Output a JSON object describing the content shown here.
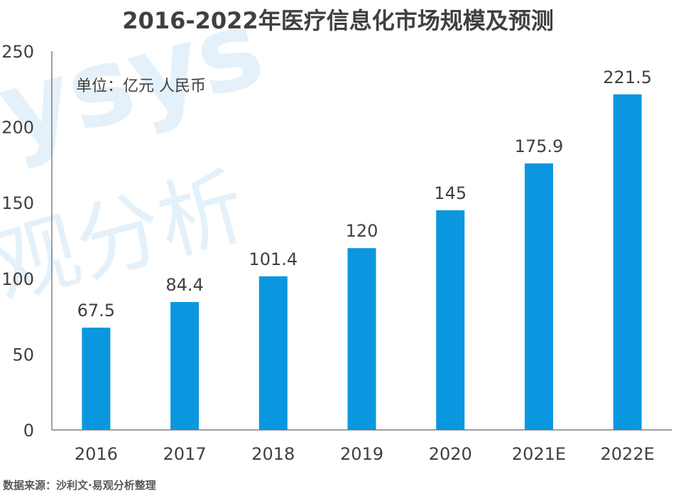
{
  "chart_data": {
    "type": "bar",
    "title": "2016-2022年医疗信息化市场规模及预测",
    "unit_label": "单位：亿元 人民币",
    "categories": [
      "2016",
      "2017",
      "2018",
      "2019",
      "2020",
      "2021E",
      "2022E"
    ],
    "values": [
      67.5,
      84.4,
      101.4,
      120,
      145,
      175.9,
      221.5
    ],
    "data_labels": [
      "67.5",
      "84.4",
      "101.4",
      "120",
      "145",
      "175.9",
      "221.5"
    ],
    "y_ticks": [
      "0",
      "50",
      "100",
      "150",
      "200",
      "250"
    ],
    "ylim": [
      0,
      250
    ],
    "grid": false,
    "legend": "none",
    "bar_color": "#0b97e0"
  },
  "source": "数据来源：沙利文·易观分析整理",
  "watermark": {
    "text_top": "ysys",
    "text_bottom": "观分析"
  }
}
